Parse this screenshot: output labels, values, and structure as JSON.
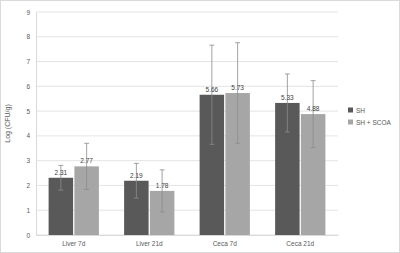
{
  "chart_data": {
    "type": "bar",
    "y_label": "Log (CFU/g)",
    "categories": [
      "Liver 7d",
      "Liver 21d",
      "Ceca 7d",
      "Ceca 21d"
    ],
    "series": [
      {
        "name": "SH",
        "color": "#595959",
        "values": [
          2.31,
          2.19,
          5.66,
          5.33
        ],
        "errors": [
          0.5,
          0.7,
          2.0,
          1.17
        ]
      },
      {
        "name": "SH + SCOA",
        "color": "#a6a6a6",
        "values": [
          2.77,
          1.78,
          5.73,
          4.88
        ],
        "errors": [
          0.93,
          0.85,
          2.03,
          1.35
        ]
      }
    ],
    "ylim": [
      0,
      9
    ],
    "yticks": [
      0,
      1,
      2,
      3,
      4,
      5,
      6,
      7,
      8,
      9
    ],
    "grid": true,
    "legend": "right",
    "data_labels": true
  }
}
